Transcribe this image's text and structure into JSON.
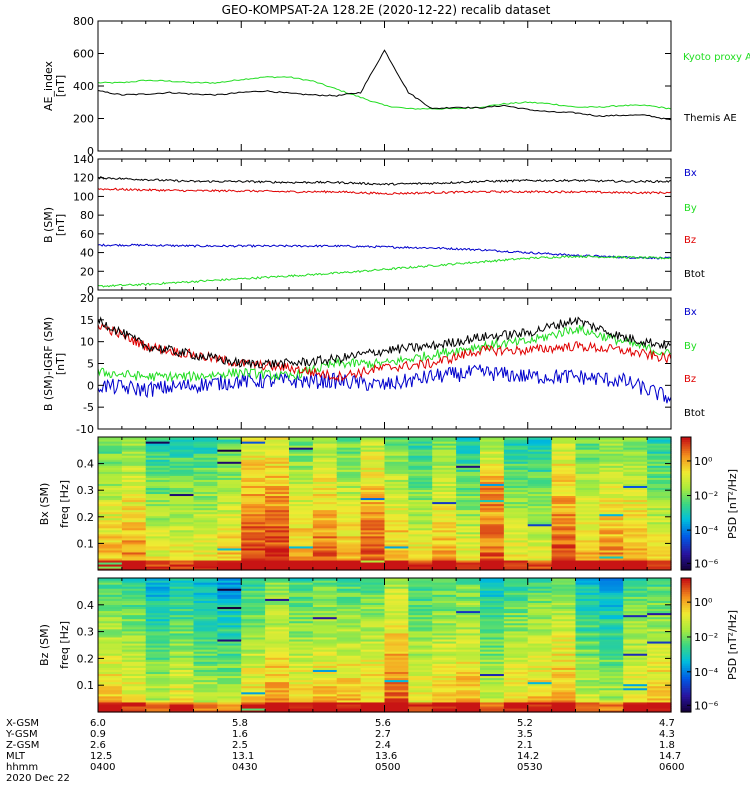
{
  "title": "GEO-KOMPSAT-2A 128.2E (2020-12-22) recalib dataset",
  "colors": {
    "black": "#000000",
    "red": "#e00000",
    "green": "#22dd22",
    "blue": "#0000cc",
    "kyoto": "#22dd22"
  },
  "chart_data": [
    {
      "type": "line",
      "panel": "ae",
      "ylabel": "AE_index",
      "yunit": "[nT]",
      "ylim": [
        0,
        800
      ],
      "yticks": [
        "0",
        "200",
        "400",
        "600",
        "800"
      ],
      "x": [
        0,
        5,
        10,
        15,
        20,
        25,
        30,
        35,
        40,
        45,
        50,
        55,
        60,
        65,
        70,
        75,
        80,
        85,
        90,
        95,
        100,
        105,
        110,
        115,
        120
      ],
      "series": [
        {
          "name": "Kyoto proxy AE",
          "color": "green",
          "values": [
            420,
            420,
            435,
            430,
            420,
            420,
            440,
            455,
            455,
            430,
            380,
            330,
            280,
            260,
            260,
            260,
            270,
            290,
            300,
            290,
            270,
            270,
            280,
            280,
            260
          ]
        },
        {
          "name": "Themis AE",
          "color": "black",
          "values": [
            370,
            345,
            350,
            360,
            350,
            345,
            360,
            370,
            355,
            345,
            340,
            360,
            620,
            360,
            260,
            270,
            265,
            280,
            255,
            240,
            235,
            215,
            220,
            220,
            190
          ]
        }
      ],
      "legend": [
        "Kyoto proxy AE",
        "Themis AE"
      ]
    },
    {
      "type": "line",
      "panel": "b",
      "ylabel": "B (SM)",
      "yunit": "[nT]",
      "ylim": [
        0,
        140
      ],
      "yticks": [
        "0",
        "20",
        "40",
        "60",
        "80",
        "100",
        "120",
        "140"
      ],
      "x": [
        0,
        10,
        20,
        30,
        40,
        50,
        60,
        70,
        80,
        90,
        100,
        110,
        120
      ],
      "series": [
        {
          "name": "Bx",
          "color": "blue",
          "values": [
            48,
            48,
            47,
            47,
            47,
            47,
            46,
            45,
            43,
            40,
            37,
            35,
            34
          ]
        },
        {
          "name": "By",
          "color": "green",
          "values": [
            4,
            6,
            9,
            12,
            15,
            18,
            22,
            26,
            30,
            34,
            36,
            35,
            34
          ]
        },
        {
          "name": "Bz",
          "color": "red",
          "values": [
            108,
            107,
            106,
            106,
            105,
            105,
            103,
            104,
            105,
            105,
            105,
            104,
            104
          ]
        },
        {
          "name": "Btot",
          "color": "black",
          "values": [
            120,
            118,
            116,
            116,
            115,
            115,
            113,
            114,
            116,
            117,
            117,
            116,
            116
          ]
        }
      ],
      "legend": [
        "Bx",
        "By",
        "Bz",
        "Btot"
      ]
    },
    {
      "type": "line",
      "panel": "db",
      "ylabel": "B (SM)-IGRF (SM)",
      "yunit": "[nT]",
      "ylim": [
        -10,
        20
      ],
      "yticks": [
        "-10",
        "-5",
        "0",
        "5",
        "10",
        "15",
        "20"
      ],
      "x": [
        0,
        10,
        20,
        30,
        40,
        50,
        60,
        70,
        80,
        90,
        100,
        110,
        120
      ],
      "series": [
        {
          "name": "Bx",
          "color": "blue",
          "values": [
            0,
            -1,
            0,
            1,
            1,
            1,
            0,
            2,
            3,
            2,
            2,
            1,
            -3
          ]
        },
        {
          "name": "By",
          "color": "green",
          "values": [
            3,
            2,
            2,
            3,
            2,
            5,
            5,
            7,
            9,
            10,
            13,
            10,
            7
          ]
        },
        {
          "name": "Bz",
          "color": "red",
          "values": [
            14,
            9,
            7,
            5,
            4,
            2,
            4,
            5,
            8,
            8,
            9,
            8,
            6
          ]
        },
        {
          "name": "Btot",
          "color": "black",
          "values": [
            15,
            9,
            7,
            5,
            5,
            6,
            8,
            9,
            11,
            12,
            15,
            11,
            9
          ]
        }
      ],
      "legend": [
        "Bx",
        "By",
        "Bz",
        "Btot"
      ]
    },
    {
      "type": "heatmap",
      "panel": "bx",
      "ylabel": "Bx (SM)",
      "ylabel2": "freq [Hz]",
      "ylim": [
        0,
        0.5
      ],
      "yticks": [
        "0.1",
        "0.2",
        "0.3",
        "0.4"
      ],
      "colorbar_label": "PSD [nT²/Hz]",
      "colorbar_ticks": [
        "10⁰",
        "10⁻²",
        "10⁻⁴",
        "10⁻⁶"
      ]
    },
    {
      "type": "heatmap",
      "panel": "bz",
      "ylabel": "Bz (SM)",
      "ylabel2": "freq [Hz]",
      "ylim": [
        0,
        0.5
      ],
      "yticks": [
        "0.1",
        "0.2",
        "0.3",
        "0.4"
      ],
      "colorbar_label": "PSD [nT²/Hz]",
      "colorbar_ticks": [
        "10⁰",
        "10⁻²",
        "10⁻⁴",
        "10⁻⁶"
      ]
    }
  ],
  "footer": {
    "labels": [
      "X-GSM",
      "Y-GSM",
      "Z-GSM",
      "MLT",
      "hhmm",
      "2020 Dec 22"
    ],
    "columns": [
      [
        "6.0",
        "0.9",
        "2.6",
        "12.5",
        "0400"
      ],
      [
        "5.8",
        "1.6",
        "2.5",
        "13.1",
        "0430"
      ],
      [
        "5.6",
        "2.7",
        "2.4",
        "13.6",
        "0500"
      ],
      [
        "5.2",
        "3.5",
        "2.1",
        "14.2",
        "0530"
      ],
      [
        "4.7",
        "4.3",
        "1.8",
        "14.7",
        "0600"
      ]
    ]
  }
}
